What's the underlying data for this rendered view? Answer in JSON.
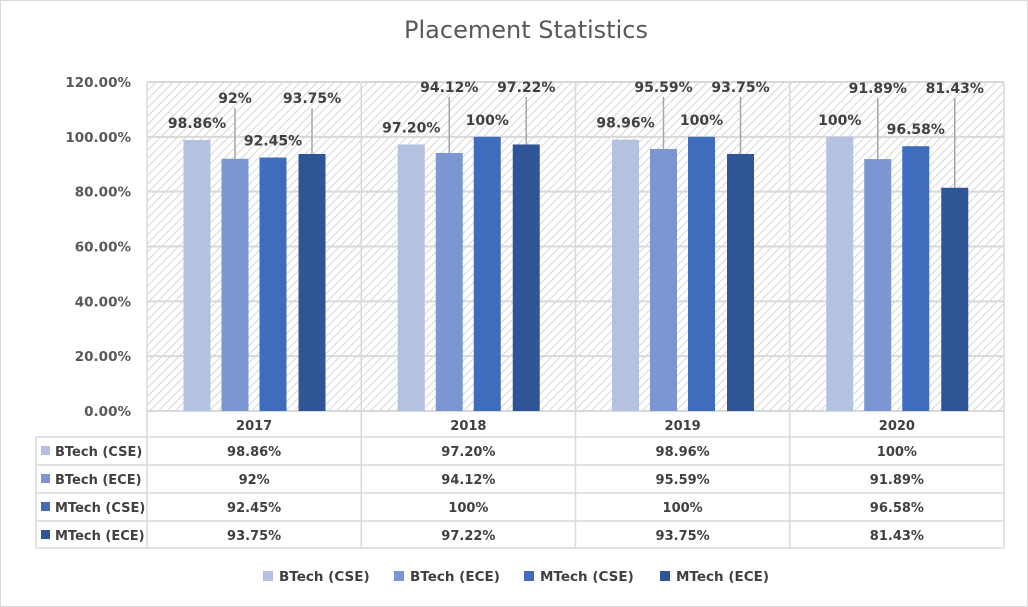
{
  "chart_data": {
    "type": "bar",
    "title": "Placement Statistics",
    "categories": [
      "2017",
      "2018",
      "2019",
      "2020"
    ],
    "yticks": [
      "0.00%",
      "20.00%",
      "40.00%",
      "60.00%",
      "80.00%",
      "100.00%",
      "120.00%"
    ],
    "ylim": [
      0,
      1.2
    ],
    "grid": true,
    "legend": "bottom",
    "data_table": true,
    "series": [
      {
        "name": "BTech (CSE)",
        "color": "#b4c1e0",
        "values": [
          0.9886,
          0.972,
          0.9896,
          1.0
        ],
        "labels": [
          "98.86%",
          "97.20%",
          "98.96%",
          "100%"
        ]
      },
      {
        "name": "BTech (ECE)",
        "color": "#7b96d1",
        "values": [
          0.92,
          0.9412,
          0.9559,
          0.9189
        ],
        "labels": [
          "92%",
          "94.12%",
          "95.59%",
          "91.89%"
        ]
      },
      {
        "name": "MTech (CSE)",
        "color": "#3f6cbc",
        "values": [
          0.9245,
          1.0,
          1.0,
          0.9658
        ],
        "labels": [
          "92.45%",
          "100%",
          "100%",
          "96.58%"
        ]
      },
      {
        "name": "MTech (ECE)",
        "color": "#2f5597",
        "values": [
          0.9375,
          0.9722,
          0.9375,
          0.8143
        ],
        "labels": [
          "93.75%",
          "97.22%",
          "93.75%",
          "81.43%"
        ]
      }
    ]
  }
}
